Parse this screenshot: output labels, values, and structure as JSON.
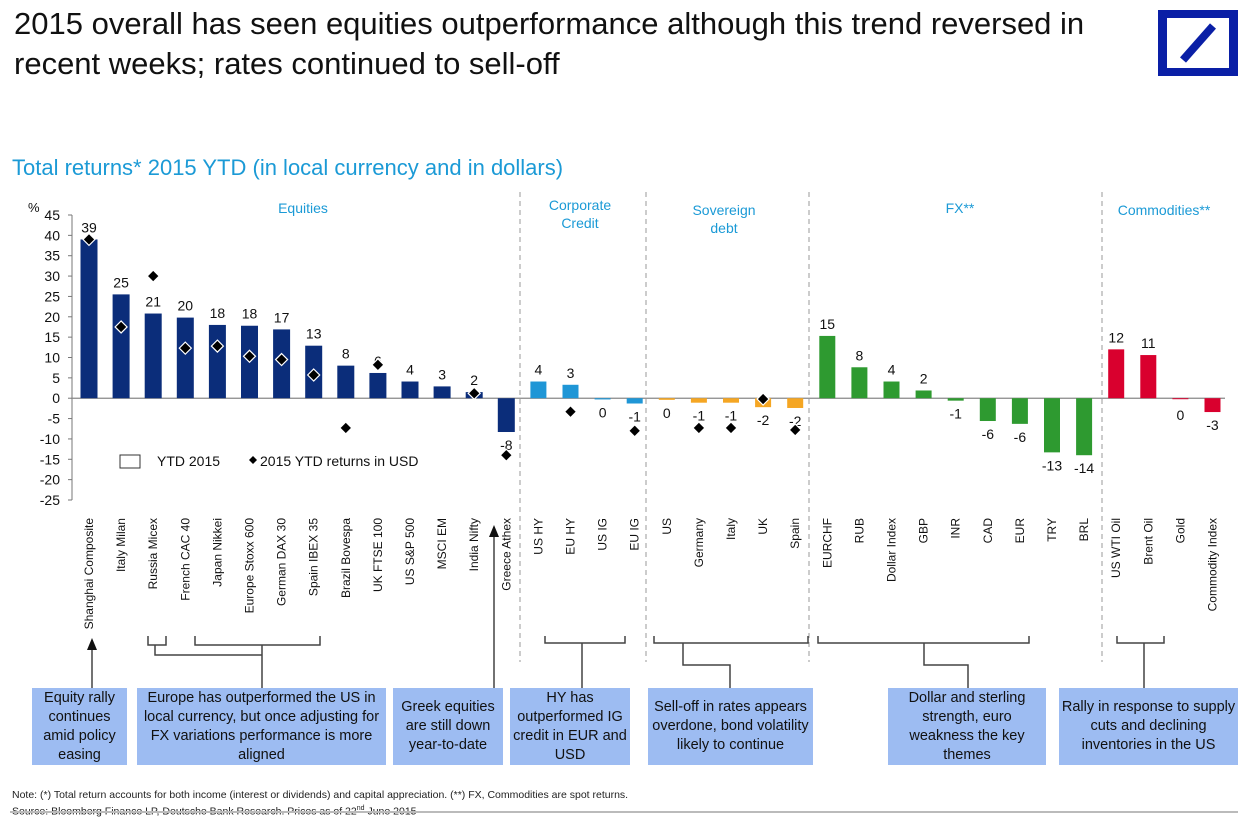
{
  "title": "2015 overall has seen equities outperformance although this trend reversed in recent weeks; rates continued to sell-off",
  "subtitle": "Total returns* 2015 YTD (in local currency and in dollars)",
  "logo": {
    "name": "Deutsche Bank",
    "color": "#0a1fa6"
  },
  "chart_data": {
    "type": "bar",
    "ylabel": "%",
    "ylim": [
      -25,
      45
    ],
    "yticks": [
      45,
      40,
      35,
      30,
      25,
      20,
      15,
      10,
      5,
      0,
      -5,
      -10,
      -15,
      -20,
      -25
    ],
    "grid": false,
    "legend": {
      "position": "lower-left",
      "entries": [
        "YTD 2015",
        "2015 YTD returns in USD"
      ]
    },
    "sections": [
      {
        "name": "Equities",
        "lines": [
          "Equities"
        ],
        "color": "#0b2d7a"
      },
      {
        "name": "Corporate Credit",
        "lines": [
          "Corporate",
          "Credit"
        ],
        "color": "#1f96d6"
      },
      {
        "name": "Sovereign debt",
        "lines": [
          "Sovereign",
          "debt"
        ],
        "color": "#f5a623"
      },
      {
        "name": "FX**",
        "lines": [
          "FX**"
        ],
        "color": "#2e9a30"
      },
      {
        "name": "Commodities**",
        "lines": [
          "Commodities**"
        ],
        "color": "#d9002e"
      }
    ],
    "categories": [
      "Shanghai Composite",
      "Italy Milan",
      "Russia Micex",
      "French CAC 40",
      "Japan Nikkei",
      "Europe Stoxx 600",
      "German DAX 30",
      "Spain IBEX 35",
      "Brazil Bovespa",
      "UK FTSE 100",
      "US S&P 500",
      "MSCI EM",
      "India Nifty",
      "Greece Athex",
      "US HY",
      "EU HY",
      "US IG",
      "EU IG",
      "US",
      "Germany",
      "Italy",
      "UK",
      "Spain",
      "EURCHF",
      "RUB",
      "Dollar Index",
      "GBP",
      "INR",
      "CAD",
      "EUR",
      "TRY",
      "BRL",
      "US WTI Oil",
      "Brent Oil",
      "Gold",
      "Commodity Index"
    ],
    "section_index": [
      0,
      0,
      0,
      0,
      0,
      0,
      0,
      0,
      0,
      0,
      0,
      0,
      0,
      0,
      1,
      1,
      1,
      1,
      2,
      2,
      2,
      2,
      2,
      3,
      3,
      3,
      3,
      3,
      3,
      3,
      3,
      3,
      4,
      4,
      4,
      4
    ],
    "series": [
      {
        "name": "YTD 2015",
        "values": [
          39,
          25.5,
          20.8,
          19.8,
          18,
          17.8,
          16.9,
          12.9,
          8,
          6.2,
          4.1,
          2.9,
          1.5,
          -8.3,
          4.1,
          3.3,
          -0.3,
          -1.3,
          -0.4,
          -1.1,
          -1.1,
          -2.2,
          -2.4,
          15.3,
          7.6,
          4.1,
          1.9,
          -0.6,
          -5.6,
          -6.3,
          -13.3,
          -14,
          12,
          10.6,
          0,
          -3.4
        ],
        "labels": [
          "39",
          "25",
          "21",
          "20",
          "18",
          "18",
          "17",
          "13",
          "8",
          "6",
          "4",
          "3",
          "2",
          "-8",
          "4",
          "3",
          "0",
          "-1",
          "0",
          "-1",
          "-1",
          "-2",
          "-2",
          "15",
          "8",
          "4",
          "2",
          "-1",
          "-6",
          "-6",
          "-13",
          "-14",
          "12",
          "11",
          "0",
          "-3"
        ]
      },
      {
        "name": "2015 YTD returns in USD",
        "values": [
          39,
          17.5,
          30,
          12.3,
          12.8,
          10.3,
          9.5,
          5.7,
          -7.3,
          8.2,
          null,
          null,
          1.2,
          -14,
          null,
          -3.3,
          null,
          -8,
          null,
          -7.3,
          -7.3,
          -0.2,
          -7.8,
          null,
          null,
          null,
          null,
          null,
          null,
          null,
          null,
          null,
          null,
          null,
          null,
          null
        ]
      }
    ]
  },
  "callouts": [
    "Equity rally continues amid policy easing",
    "Europe has outperformed the US in local currency, but once adjusting for FX variations performance is more aligned",
    "Greek equities are still down year-to-date",
    "HY has outperformed IG credit in EUR and USD",
    "Sell-off in rates appears overdone, bond volatility likely to continue",
    "Dollar and sterling strength, euro weakness the key themes",
    "Rally in response to supply cuts and declining inventories in the US"
  ],
  "callout_color": "#9dbcf2",
  "note": "Note: (*) Total return accounts for both income (interest or dividends) and capital appreciation. (**) FX, Commodities are spot returns.",
  "source": {
    "prefix": "Source: Bloomberg Finance LP, Deutsche Bank Research. Prices as of  22",
    "sup": "nd",
    "suffix": " June 2015"
  }
}
